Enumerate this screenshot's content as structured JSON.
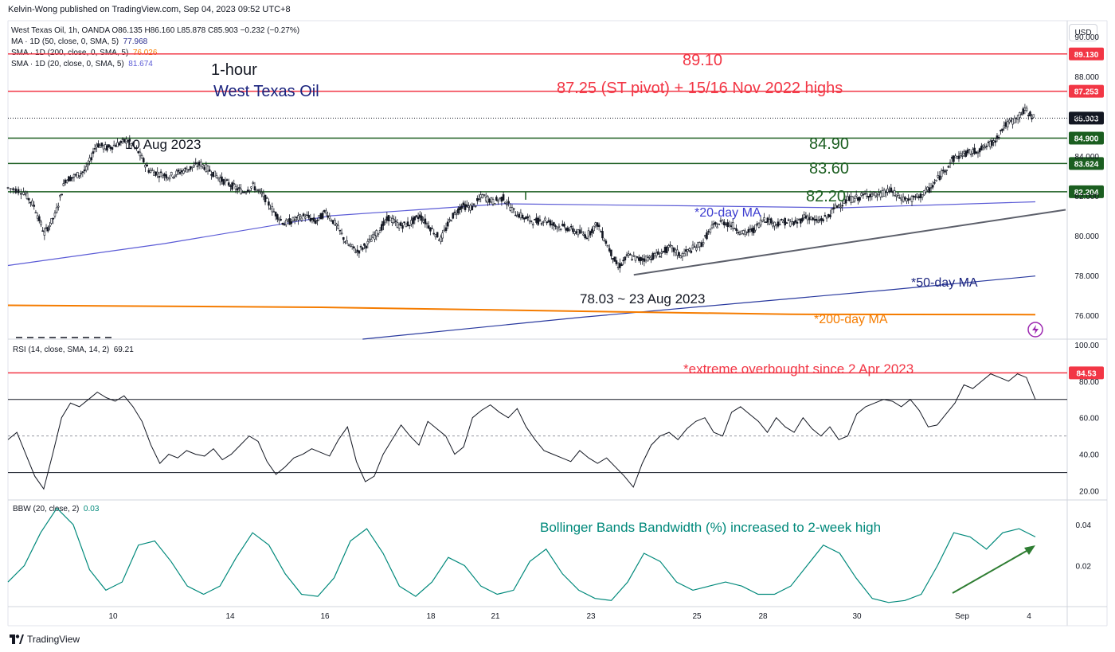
{
  "header": {
    "publisher": "Kelvin-Wong published on TradingView.com, Sep 04, 2023 09:52 UTC+8",
    "currency_button": "USD"
  },
  "legend": {
    "symbol_line": "West Texas Oil, 1h, OANDA  O86.135  H86.160  L85.878  C85.903  −0.232 (−0.27%)",
    "ma_lines": [
      {
        "label": "MA · 1D (50, close, 0, SMA, 5)",
        "value": "77.968",
        "color": "#2a2e8f"
      },
      {
        "label": "SMA · 1D (200, close, 0, SMA, 5)",
        "value": "76.026",
        "color": "#f57c00"
      },
      {
        "label": "SMA · 1D (20, close, 0, SMA, 5)",
        "value": "81.674",
        "color": "#5b5bd6"
      }
    ],
    "rsi_label": "RSI (14, close, SMA, 14, 2)",
    "rsi_value": "69.21",
    "bbw_label": "BBW (20, close, 2)",
    "bbw_value": "0.03"
  },
  "footer": {
    "brand": "TradingView"
  },
  "colors": {
    "red": "#f23645",
    "green": "#1b5e20",
    "blue": "#1a237e",
    "teal": "#00897b",
    "orange": "#f57c00",
    "ma20": "#5b5bd6",
    "ma50": "#2a3a9f"
  },
  "chart_data": [
    {
      "type": "line",
      "panel": "price",
      "title": "",
      "ylim": [
        74.8,
        90.8
      ],
      "y_ticks": [
        "76.000",
        "78.000",
        "80.000",
        "82.000",
        "84.000",
        "86.000",
        "88.000",
        "90.000"
      ],
      "x_ticks": [
        "10",
        "14",
        "16",
        "18",
        "21",
        "23",
        "25",
        "28",
        "30",
        "Sep",
        "4"
      ],
      "horizontal_levels": [
        {
          "value": 89.13,
          "label": "89.130",
          "color": "#f23645"
        },
        {
          "value": 87.253,
          "label": "87.253",
          "color": "#f23645"
        },
        {
          "value": 85.903,
          "label": "85.903",
          "color": "#131722"
        },
        {
          "value": 84.9,
          "label": "84.900",
          "color": "#1b5e20"
        },
        {
          "value": 83.624,
          "label": "83.624",
          "color": "#1b5e20"
        },
        {
          "value": 82.204,
          "label": "82.204",
          "color": "#1b5e20"
        }
      ],
      "annotations": [
        {
          "text": "1-hour",
          "color": "#131722"
        },
        {
          "text": "West Texas Oil",
          "color": "#1a237e"
        },
        {
          "text": "89.10",
          "color": "#f23645"
        },
        {
          "text": "87.25 (ST pivot) + 15/16 Nov 2022 highs",
          "color": "#f23645"
        },
        {
          "text": "10 Aug 2023",
          "color": "#131722"
        },
        {
          "text": "84.90",
          "color": "#1b5e20"
        },
        {
          "text": "83.60",
          "color": "#1b5e20"
        },
        {
          "text": "82.20",
          "color": "#1b5e20"
        },
        {
          "text": "*20-day MA",
          "color": "#3c3cd0"
        },
        {
          "text": "*50-day MA",
          "color": "#1a237e"
        },
        {
          "text": "*200-day MA",
          "color": "#f57c00"
        },
        {
          "text": "78.03 ~  23 Aug 2023",
          "color": "#131722"
        }
      ],
      "price_series": [
        [
          0,
          82.4
        ],
        [
          3,
          82.2
        ],
        [
          5,
          81.5
        ],
        [
          7,
          80.1
        ],
        [
          9,
          81.0
        ],
        [
          11,
          82.8
        ],
        [
          13,
          83.0
        ],
        [
          15,
          83.3
        ],
        [
          17,
          84.6
        ],
        [
          19,
          84.4
        ],
        [
          21,
          84.6
        ],
        [
          23,
          84.8
        ],
        [
          25,
          84.2
        ],
        [
          27,
          83.3
        ],
        [
          29,
          83.1
        ],
        [
          31,
          83.0
        ],
        [
          33,
          83.2
        ],
        [
          35,
          83.4
        ],
        [
          37,
          83.6
        ],
        [
          39,
          83.2
        ],
        [
          41,
          82.8
        ],
        [
          43,
          82.5
        ],
        [
          45,
          82.2
        ],
        [
          47,
          82.5
        ],
        [
          49,
          82.0
        ],
        [
          51,
          81.2
        ],
        [
          53,
          80.6
        ],
        [
          55,
          80.8
        ],
        [
          57,
          81.0
        ],
        [
          59,
          80.7
        ],
        [
          61,
          81.2
        ],
        [
          63,
          80.5
        ],
        [
          65,
          79.6
        ],
        [
          67,
          79.2
        ],
        [
          69,
          79.6
        ],
        [
          71,
          80.2
        ],
        [
          73,
          80.9
        ],
        [
          75,
          80.5
        ],
        [
          77,
          80.6
        ],
        [
          79,
          81.0
        ],
        [
          81,
          80.4
        ],
        [
          83,
          79.8
        ],
        [
          85,
          80.9
        ],
        [
          87,
          81.5
        ],
        [
          89,
          81.4
        ],
        [
          91,
          82.0
        ],
        [
          93,
          81.7
        ],
        [
          95,
          81.9
        ],
        [
          97,
          81.2
        ],
        [
          99,
          80.9
        ],
        [
          101,
          80.7
        ],
        [
          103,
          80.8
        ],
        [
          105,
          80.5
        ],
        [
          107,
          80.4
        ],
        [
          109,
          80.2
        ],
        [
          111,
          80.0
        ],
        [
          113,
          80.6
        ],
        [
          115,
          79.5
        ],
        [
          117,
          78.4
        ],
        [
          119,
          79.0
        ],
        [
          121,
          78.8
        ],
        [
          123,
          78.9
        ],
        [
          125,
          79.1
        ],
        [
          127,
          79.4
        ],
        [
          129,
          79.0
        ],
        [
          131,
          79.3
        ],
        [
          133,
          79.6
        ],
        [
          135,
          80.4
        ],
        [
          137,
          80.7
        ],
        [
          139,
          80.5
        ],
        [
          141,
          80.1
        ],
        [
          143,
          80.3
        ],
        [
          145,
          80.9
        ],
        [
          147,
          80.6
        ],
        [
          149,
          80.7
        ],
        [
          151,
          80.6
        ],
        [
          153,
          81.0
        ],
        [
          155,
          80.7
        ],
        [
          157,
          80.9
        ],
        [
          159,
          81.5
        ],
        [
          161,
          81.8
        ],
        [
          163,
          81.9
        ],
        [
          165,
          82.1
        ],
        [
          167,
          82.0
        ],
        [
          169,
          82.3
        ],
        [
          171,
          81.9
        ],
        [
          173,
          81.8
        ],
        [
          175,
          82.0
        ],
        [
          177,
          82.4
        ],
        [
          179,
          83.1
        ],
        [
          181,
          83.8
        ],
        [
          183,
          84.1
        ],
        [
          185,
          84.2
        ],
        [
          187,
          84.4
        ],
        [
          189,
          84.7
        ],
        [
          191,
          85.5
        ],
        [
          193,
          85.8
        ],
        [
          195,
          86.3
        ],
        [
          197,
          85.9
        ]
      ],
      "series": [
        {
          "name": "*20-day MA",
          "color": "#5b5bd6",
          "points": [
            [
              0,
              78.5
            ],
            [
              30,
              79.6
            ],
            [
              62,
              81.0
            ],
            [
              95,
              81.6
            ],
            [
              130,
              81.5
            ],
            [
              160,
              81.4
            ],
            [
              197,
              81.7
            ]
          ]
        },
        {
          "name": "*50-day MA",
          "color": "#2a3a9f",
          "points": [
            [
              68,
              74.8
            ],
            [
              110,
              75.9
            ],
            [
              140,
              76.6
            ],
            [
              170,
              77.3
            ],
            [
              197,
              77.97
            ]
          ]
        },
        {
          "name": "*200-day MA",
          "color": "#f57c00",
          "points": [
            [
              0,
              76.5
            ],
            [
              60,
              76.4
            ],
            [
              110,
              76.2
            ],
            [
              150,
              76.05
            ],
            [
              197,
              76.03
            ]
          ]
        }
      ],
      "trendline": {
        "from": [
          120,
          78.03
        ],
        "to": [
          200,
          81.3
        ]
      }
    },
    {
      "type": "line",
      "panel": "rsi",
      "ylim": [
        15,
        103
      ],
      "y_ticks": [
        "20.00",
        "40.00",
        "60.00",
        "80.00",
        "100.00"
      ],
      "level_label": "84.53",
      "annotation": "*extreme overbought since 2 Apr 2023",
      "reference_levels": [
        70,
        50,
        30
      ],
      "series": [
        {
          "name": "",
          "values": [
            48,
            52,
            40,
            28,
            21,
            40,
            60,
            68,
            66,
            70,
            74,
            71,
            69,
            72,
            66,
            58,
            45,
            35,
            40,
            38,
            42,
            40,
            39,
            43,
            37,
            40,
            45,
            50,
            47,
            36,
            29,
            33,
            38,
            40,
            43,
            41,
            39,
            48,
            55,
            36,
            25,
            28,
            40,
            48,
            56,
            50,
            45,
            58,
            54,
            50,
            40,
            44,
            60,
            64,
            67,
            63,
            60,
            65,
            55,
            48,
            42,
            40,
            38,
            36,
            42,
            38,
            35,
            38,
            33,
            28,
            22,
            35,
            45,
            50,
            52,
            48,
            54,
            58,
            60,
            52,
            50,
            63,
            66,
            62,
            58,
            52,
            60,
            55,
            52,
            60,
            54,
            50,
            55,
            48,
            50,
            62,
            66,
            68,
            70,
            69,
            66,
            70,
            64,
            55,
            56,
            62,
            68,
            78,
            76,
            80,
            84,
            82,
            80,
            84,
            82,
            70
          ]
        }
      ]
    },
    {
      "type": "line",
      "panel": "bbw",
      "ylim": [
        0.0,
        0.052
      ],
      "y_ticks": [
        "0.02",
        "0.04"
      ],
      "annotation": "Bollinger Bands Bandwidth (%) increased to  2-week high",
      "series": [
        {
          "name": "",
          "values": [
            0.012,
            0.02,
            0.036,
            0.048,
            0.04,
            0.018,
            0.008,
            0.012,
            0.03,
            0.032,
            0.022,
            0.01,
            0.006,
            0.01,
            0.024,
            0.036,
            0.03,
            0.016,
            0.006,
            0.005,
            0.014,
            0.032,
            0.038,
            0.026,
            0.01,
            0.005,
            0.012,
            0.024,
            0.02,
            0.01,
            0.006,
            0.008,
            0.022,
            0.028,
            0.016,
            0.008,
            0.004,
            0.003,
            0.012,
            0.026,
            0.022,
            0.012,
            0.008,
            0.01,
            0.012,
            0.01,
            0.006,
            0.006,
            0.01,
            0.02,
            0.03,
            0.026,
            0.014,
            0.004,
            0.002,
            0.003,
            0.006,
            0.02,
            0.036,
            0.034,
            0.028,
            0.036,
            0.038,
            0.034
          ]
        }
      ]
    }
  ]
}
